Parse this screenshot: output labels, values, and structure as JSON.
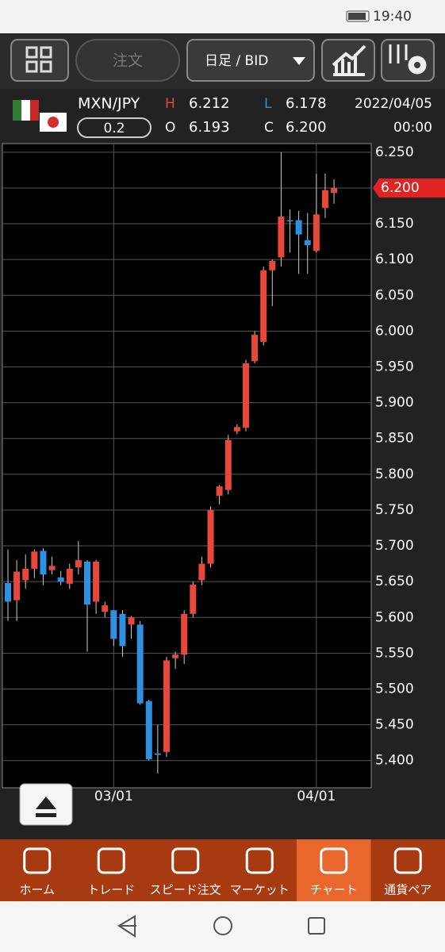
{
  "status_bar": {
    "time": "19:40"
  },
  "toolbar": {
    "order_button": "注文",
    "timeframe": "日足 / BID"
  },
  "quote": {
    "pair": "MXN/JPY",
    "spread": "0.2",
    "high_label": "H",
    "high": "6.212",
    "low_label": "L",
    "low": "6.178",
    "open_label": "O",
    "open": "6.193",
    "close_label": "C",
    "close": "6.200",
    "date": "2022/04/05",
    "time": "00:00"
  },
  "chart_data": {
    "type": "candlestick",
    "categories": [
      null,
      null,
      null,
      null,
      null,
      null,
      null,
      null,
      null,
      null,
      null,
      null,
      "03/01",
      null,
      null,
      null,
      null,
      null,
      null,
      null,
      null,
      null,
      null,
      null,
      null,
      null,
      null,
      null,
      null,
      null,
      null,
      null,
      null,
      null,
      null,
      "04/01",
      null,
      null
    ],
    "open": [
      5.648,
      5.624,
      5.652,
      5.668,
      5.693,
      5.666,
      5.656,
      5.647,
      5.67,
      5.678,
      5.622,
      5.608,
      5.61,
      5.605,
      5.59,
      5.59,
      5.483,
      5.41,
      5.412,
      5.543,
      5.548,
      5.605,
      5.652,
      5.675,
      5.77,
      5.778,
      5.86,
      5.865,
      5.958,
      5.985,
      6.085,
      6.103,
      6.155,
      6.155,
      6.127,
      6.112,
      6.172,
      6.193
    ],
    "high": [
      5.695,
      5.68,
      5.688,
      5.695,
      5.697,
      5.685,
      5.665,
      5.675,
      5.707,
      5.68,
      5.68,
      5.622,
      5.61,
      5.61,
      5.602,
      5.595,
      5.485,
      5.45,
      5.545,
      5.552,
      5.61,
      5.65,
      5.685,
      5.755,
      5.785,
      5.855,
      5.87,
      5.96,
      6.0,
      6.09,
      6.1,
      6.25,
      6.17,
      6.168,
      6.165,
      6.22,
      6.22,
      6.212
    ],
    "low": [
      5.595,
      5.595,
      5.64,
      5.655,
      5.645,
      5.66,
      5.645,
      5.64,
      5.66,
      5.552,
      5.605,
      5.6,
      5.56,
      5.545,
      5.57,
      5.478,
      5.4,
      5.382,
      5.405,
      5.528,
      5.535,
      5.6,
      5.645,
      5.67,
      5.758,
      5.772,
      5.856,
      5.86,
      5.955,
      5.98,
      6.035,
      6.09,
      6.11,
      6.08,
      6.08,
      6.11,
      6.158,
      6.178
    ],
    "close": [
      5.622,
      5.664,
      5.668,
      5.692,
      5.66,
      5.672,
      5.65,
      5.668,
      5.68,
      5.618,
      5.678,
      5.617,
      5.57,
      5.56,
      5.6,
      5.48,
      5.402,
      5.408,
      5.54,
      5.548,
      5.605,
      5.646,
      5.675,
      5.75,
      5.783,
      5.848,
      5.866,
      5.955,
      5.995,
      6.085,
      6.098,
      6.16,
      6.154,
      6.135,
      6.12,
      6.163,
      6.197,
      6.2
    ],
    "up_color": "#e8473c",
    "down_color": "#2f8fe0",
    "ylim": [
      5.362,
      6.262
    ],
    "yticks": [
      {
        "value": 5.4,
        "label": "5.400"
      },
      {
        "value": 5.45,
        "label": "5.450"
      },
      {
        "value": 5.5,
        "label": "5.500"
      },
      {
        "value": 5.55,
        "label": "5.550"
      },
      {
        "value": 5.6,
        "label": "5.600"
      },
      {
        "value": 5.65,
        "label": "5.650"
      },
      {
        "value": 5.7,
        "label": "5.700"
      },
      {
        "value": 5.75,
        "label": "5.750"
      },
      {
        "value": 5.8,
        "label": "5.800"
      },
      {
        "value": 5.85,
        "label": "5.850"
      },
      {
        "value": 5.9,
        "label": "5.900"
      },
      {
        "value": 5.95,
        "label": "5.950"
      },
      {
        "value": 6.0,
        "label": "6.000"
      },
      {
        "value": 6.05,
        "label": "6.050"
      },
      {
        "value": 6.1,
        "label": "6.100"
      },
      {
        "value": 6.15,
        "label": "6.150"
      },
      {
        "value": 6.2,
        "label": "6.200"
      },
      {
        "value": 6.25,
        "label": "6.250"
      }
    ],
    "last_price": {
      "value": 6.2,
      "label": "6.200"
    },
    "grid": true
  },
  "nav": {
    "items": [
      "ホーム",
      "トレード",
      "スピード注文",
      "マーケット",
      "チャート",
      "通貨ペア"
    ],
    "active": 4
  }
}
